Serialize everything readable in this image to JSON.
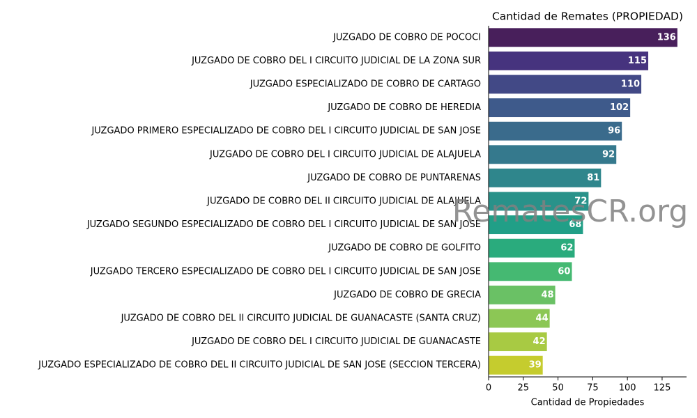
{
  "chart_data": {
    "type": "barh",
    "title": "Cantidad de Remates (PROPIEDAD)",
    "xlabel": "Cantidad de Propiedades",
    "watermark": "RematesCR.org",
    "categories": [
      "JUZGADO DE COBRO DE POCOCI",
      "JUZGADO DE COBRO DEL I CIRCUITO JUDICIAL DE LA ZONA SUR",
      "JUZGADO ESPECIALIZADO DE COBRO DE CARTAGO",
      "JUZGADO DE COBRO DE HEREDIA",
      "JUZGADO PRIMERO ESPECIALIZADO DE COBRO DEL I CIRCUITO JUDICIAL DE SAN JOSE",
      "JUZGADO DE COBRO DEL I CIRCUITO JUDICIAL DE ALAJUELA",
      "JUZGADO DE COBRO DE PUNTARENAS",
      "JUZGADO DE COBRO DEL II CIRCUITO JUDICIAL DE ALAJUELA",
      "JUZGADO SEGUNDO ESPECIALIZADO DE COBRO DEL I CIRCUITO JUDICIAL DE SAN JOSE",
      "JUZGADO DE COBRO DE GOLFITO",
      "JUZGADO TERCERO ESPECIALIZADO DE COBRO DEL I CIRCUITO JUDICIAL DE SAN JOSE",
      "JUZGADO DE COBRO DE GRECIA",
      "JUZGADO DE COBRO DEL II CIRCUITO JUDICIAL DE GUANACASTE (SANTA CRUZ)",
      "JUZGADO DE COBRO DEL I CIRCUITO JUDICIAL DE GUANACASTE",
      "JUZGADO ESPECIALIZADO DE COBRO DEL II CIRCUITO JUDICIAL DE SAN JOSE (SECCION TERCERA)"
    ],
    "values": [
      136,
      115,
      110,
      102,
      96,
      92,
      81,
      72,
      68,
      62,
      60,
      48,
      44,
      42,
      39
    ],
    "colors": [
      "#481f5b",
      "#46337e",
      "#424986",
      "#3e5a8b",
      "#3a6b8c",
      "#35798d",
      "#2f868c",
      "#29928a",
      "#219f87",
      "#2aab7d",
      "#45b972",
      "#6ac165",
      "#8cc755",
      "#a8ca43",
      "#c5cc2e"
    ],
    "xlim": [
      0,
      142.6
    ],
    "xticks": [
      0,
      25,
      50,
      75,
      100,
      125
    ]
  }
}
